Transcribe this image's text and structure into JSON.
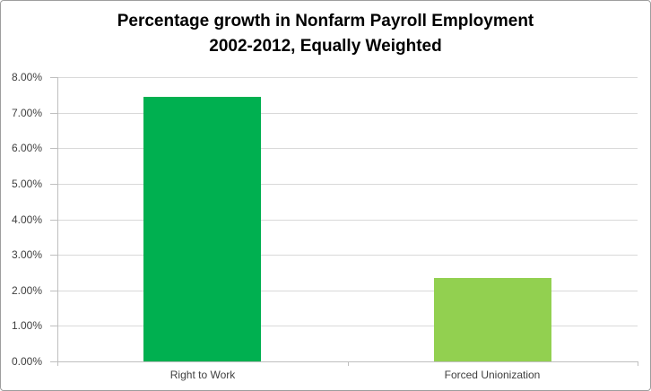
{
  "chart_data": {
    "type": "bar",
    "title": "Percentage growth in Nonfarm Payroll Employment 2002-2012, Equally Weighted",
    "title_lines": [
      "Percentage growth in Nonfarm Payroll Employment",
      "2002-2012, Equally Weighted"
    ],
    "categories": [
      "Right to Work",
      "Forced Unionization"
    ],
    "values": [
      7.45,
      2.35
    ],
    "ylim": [
      0,
      8
    ],
    "ytick_step": 1,
    "ytick_labels": [
      "0.00%",
      "1.00%",
      "2.00%",
      "3.00%",
      "4.00%",
      "5.00%",
      "6.00%",
      "7.00%",
      "8.00%"
    ],
    "xlabel": "",
    "ylabel": "",
    "grid": true,
    "legend_position": "none",
    "data_labels": false,
    "bar_colors": [
      "#00B050",
      "#92D050"
    ],
    "gridline_color": "#d9d9d9",
    "axis_color": "#bfbfbf",
    "tick_label_color": "#3f3f3f",
    "title_color": "#000000",
    "background_color": "#ffffff",
    "border_color": "#9e9e9e"
  }
}
